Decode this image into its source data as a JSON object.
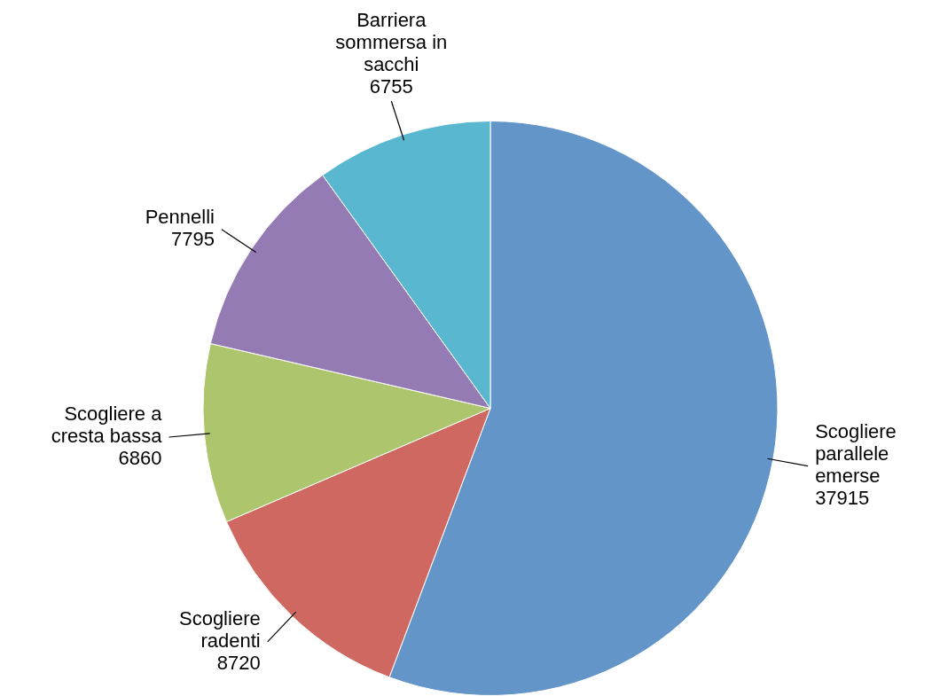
{
  "chart_data": {
    "type": "pie",
    "categories": [
      "Scogliere parallele emerse",
      "Scogliere radenti",
      "Scogliere a cresta bassa",
      "Pennelli",
      "Barriera sommersa in sacchi"
    ],
    "values": [
      37915,
      8720,
      6860,
      7795,
      6755
    ],
    "colors": [
      "#6495c9",
      "#cf6860",
      "#adc56d",
      "#957bb3",
      "#5ab7d0"
    ],
    "data_labels": true
  }
}
